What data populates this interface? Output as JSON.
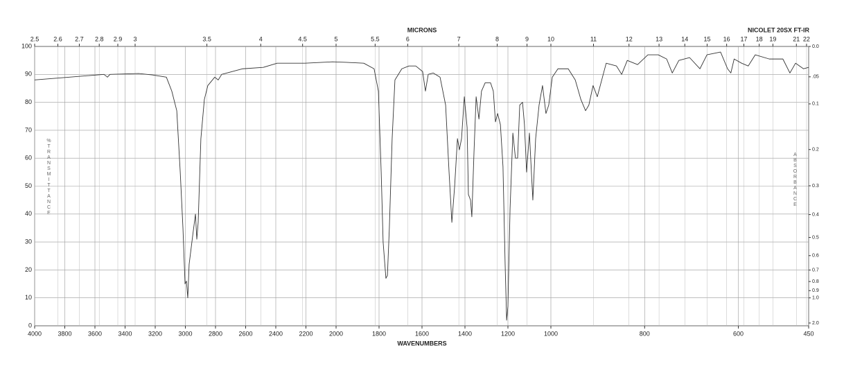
{
  "chart_data": {
    "type": "line",
    "title": "NICOLET 20SX FT-IR",
    "x_label": "WAVENUMBERS",
    "x2_label": "MICRONS",
    "y_label": "%TRANSMITTANCE",
    "y2_label": "ABSORBANCE",
    "xlim": [
      4000,
      450
    ],
    "x_scale_breaks": [
      2000,
      1000
    ],
    "xticks": [
      4000,
      3800,
      3600,
      3400,
      3200,
      3000,
      2800,
      2600,
      2400,
      2200,
      2000,
      1800,
      1600,
      1400,
      1200,
      1000,
      800,
      600,
      450
    ],
    "x2ticks": [
      2.5,
      2.6,
      2.7,
      2.8,
      2.9,
      3,
      3.5,
      4,
      4.5,
      5,
      5.5,
      6,
      7,
      8,
      9,
      10,
      11,
      12,
      13,
      14,
      15,
      16,
      17,
      18,
      19,
      21,
      22
    ],
    "ylim": [
      0,
      100
    ],
    "yticks": [
      0,
      10,
      20,
      30,
      40,
      50,
      60,
      70,
      80,
      90,
      100
    ],
    "y2ticks": [
      {
        "value": 0,
        "label": "0.0"
      },
      {
        "value": 0.05,
        "label": ".05"
      },
      0.1,
      0.2,
      0.3,
      0.4,
      0.5,
      0.6,
      0.7,
      0.8,
      0.9,
      {
        "value": 1,
        "label": "1.0"
      },
      {
        "value": 2,
        "label": "2.0"
      }
    ],
    "grid": true,
    "series": [
      {
        "color": "#333333",
        "x": [
          4000,
          3770,
          3540,
          3517,
          3500,
          3310,
          3220,
          3126,
          3090,
          3057,
          3034,
          3016,
          3002,
          2993,
          2984,
          2975,
          2952,
          2933,
          2924,
          2915,
          2897,
          2874,
          2851,
          2805,
          2782,
          2759,
          2620,
          2483,
          2391,
          2207,
          2023,
          1952,
          1871,
          1823,
          1803,
          1790,
          1781,
          1768,
          1761,
          1752,
          1739,
          1726,
          1694,
          1661,
          1629,
          1597,
          1584,
          1571,
          1548,
          1516,
          1490,
          1474,
          1461,
          1448,
          1435,
          1426,
          1416,
          1403,
          1390,
          1384,
          1374,
          1368,
          1358,
          1348,
          1335,
          1323,
          1306,
          1281,
          1268,
          1258,
          1248,
          1235,
          1223,
          1213,
          1206,
          1200,
          1190,
          1177,
          1165,
          1155,
          1145,
          1132,
          1123,
          1113,
          1100,
          1084,
          1071,
          1055,
          1039,
          1023,
          1010,
          997,
          985,
          963,
          948,
          936,
          926,
          919,
          910,
          901,
          882,
          860,
          849,
          837,
          815,
          793,
          771,
          753,
          741,
          727,
          704,
          682,
          667,
          638,
          623,
          616,
          609,
          593,
          579,
          564,
          534,
          505,
          490,
          478,
          461,
          450
        ],
        "values": [
          88,
          89,
          90,
          89,
          90,
          90.3,
          89.8,
          89,
          84,
          77,
          55,
          35,
          15,
          16,
          10,
          22,
          32,
          40,
          31,
          37,
          67,
          81,
          86,
          89,
          88,
          90,
          92,
          92.5,
          94,
          94,
          94.5,
          94.3,
          94,
          92,
          84,
          55,
          30,
          17,
          18,
          35,
          67,
          88,
          92,
          93,
          93,
          91,
          84,
          90,
          90.5,
          89,
          79,
          55,
          37,
          50,
          67,
          63,
          67,
          82,
          71,
          47,
          45,
          39,
          62,
          82,
          74,
          84,
          87,
          87,
          84,
          73,
          76,
          72,
          57,
          22,
          2,
          7,
          42,
          69,
          60,
          60,
          79,
          80,
          72,
          55,
          69,
          45,
          67,
          79,
          86,
          76,
          79,
          89,
          92,
          92,
          88,
          81,
          77,
          79,
          86,
          82,
          94,
          93,
          90,
          95,
          93.5,
          97,
          97,
          95.5,
          90.5,
          95,
          96,
          92,
          97,
          98,
          92,
          90.5,
          95.5,
          94,
          93,
          97,
          95.5,
          95.5,
          90.5,
          94,
          92,
          92.5
        ]
      }
    ]
  }
}
